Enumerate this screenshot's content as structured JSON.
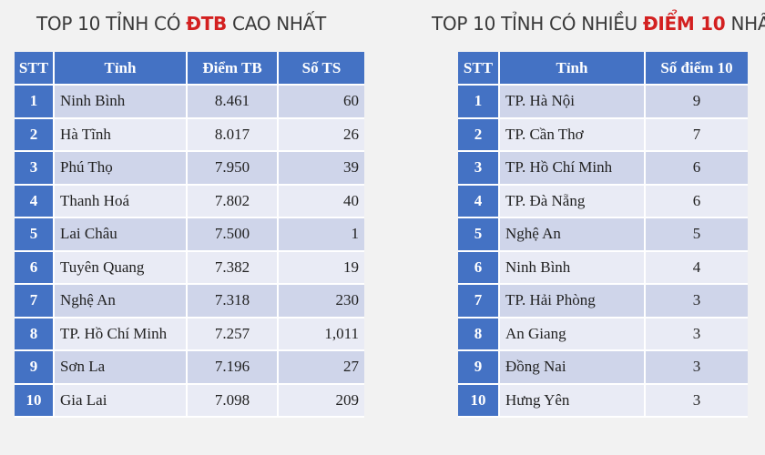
{
  "left": {
    "title_pre": "TOP 10 TỈNH CÓ ",
    "title_hl": "ĐTB",
    "title_post": " CAO NHẤT",
    "headers": [
      "STT",
      "Tỉnh",
      "Điểm TB",
      "Số TS"
    ],
    "rows": [
      [
        "1",
        "Ninh Bình",
        "8.461",
        "60"
      ],
      [
        "2",
        "Hà Tĩnh",
        "8.017",
        "26"
      ],
      [
        "3",
        "Phú Thọ",
        "7.950",
        "39"
      ],
      [
        "4",
        "Thanh Hoá",
        "7.802",
        "40"
      ],
      [
        "5",
        "Lai Châu",
        "7.500",
        "1"
      ],
      [
        "6",
        "Tuyên Quang",
        "7.382",
        "19"
      ],
      [
        "7",
        "Nghệ An",
        "7.318",
        "230"
      ],
      [
        "8",
        "TP. Hồ Chí Minh",
        "7.257",
        "1,011"
      ],
      [
        "9",
        "Sơn La",
        "7.196",
        "27"
      ],
      [
        "10",
        "Gia Lai",
        "7.098",
        "209"
      ]
    ]
  },
  "right": {
    "title_pre": "TOP 10 TỈNH CÓ NHIỀU ",
    "title_hl": "ĐIỂM 10",
    "title_post": " NHẤT",
    "headers": [
      "STT",
      "Tỉnh",
      "Số điểm 10"
    ],
    "rows": [
      [
        "1",
        "TP. Hà Nội",
        "9"
      ],
      [
        "2",
        "TP. Cần Thơ",
        "7"
      ],
      [
        "3",
        "TP. Hồ Chí Minh",
        "6"
      ],
      [
        "4",
        "TP. Đà Nẵng",
        "6"
      ],
      [
        "5",
        "Nghệ An",
        "5"
      ],
      [
        "6",
        "Ninh Bình",
        "4"
      ],
      [
        "7",
        "TP. Hải Phòng",
        "3"
      ],
      [
        "8",
        "An Giang",
        "3"
      ],
      [
        "9",
        "Đồng Nai",
        "3"
      ],
      [
        "10",
        "Hưng Yên",
        "3"
      ]
    ]
  },
  "colors": {
    "header_bg": "#4472c4",
    "row_odd": "#cfd5ea",
    "row_even": "#e9ebf5",
    "highlight": "#d32020",
    "page_bg": "#f2f2f2"
  }
}
